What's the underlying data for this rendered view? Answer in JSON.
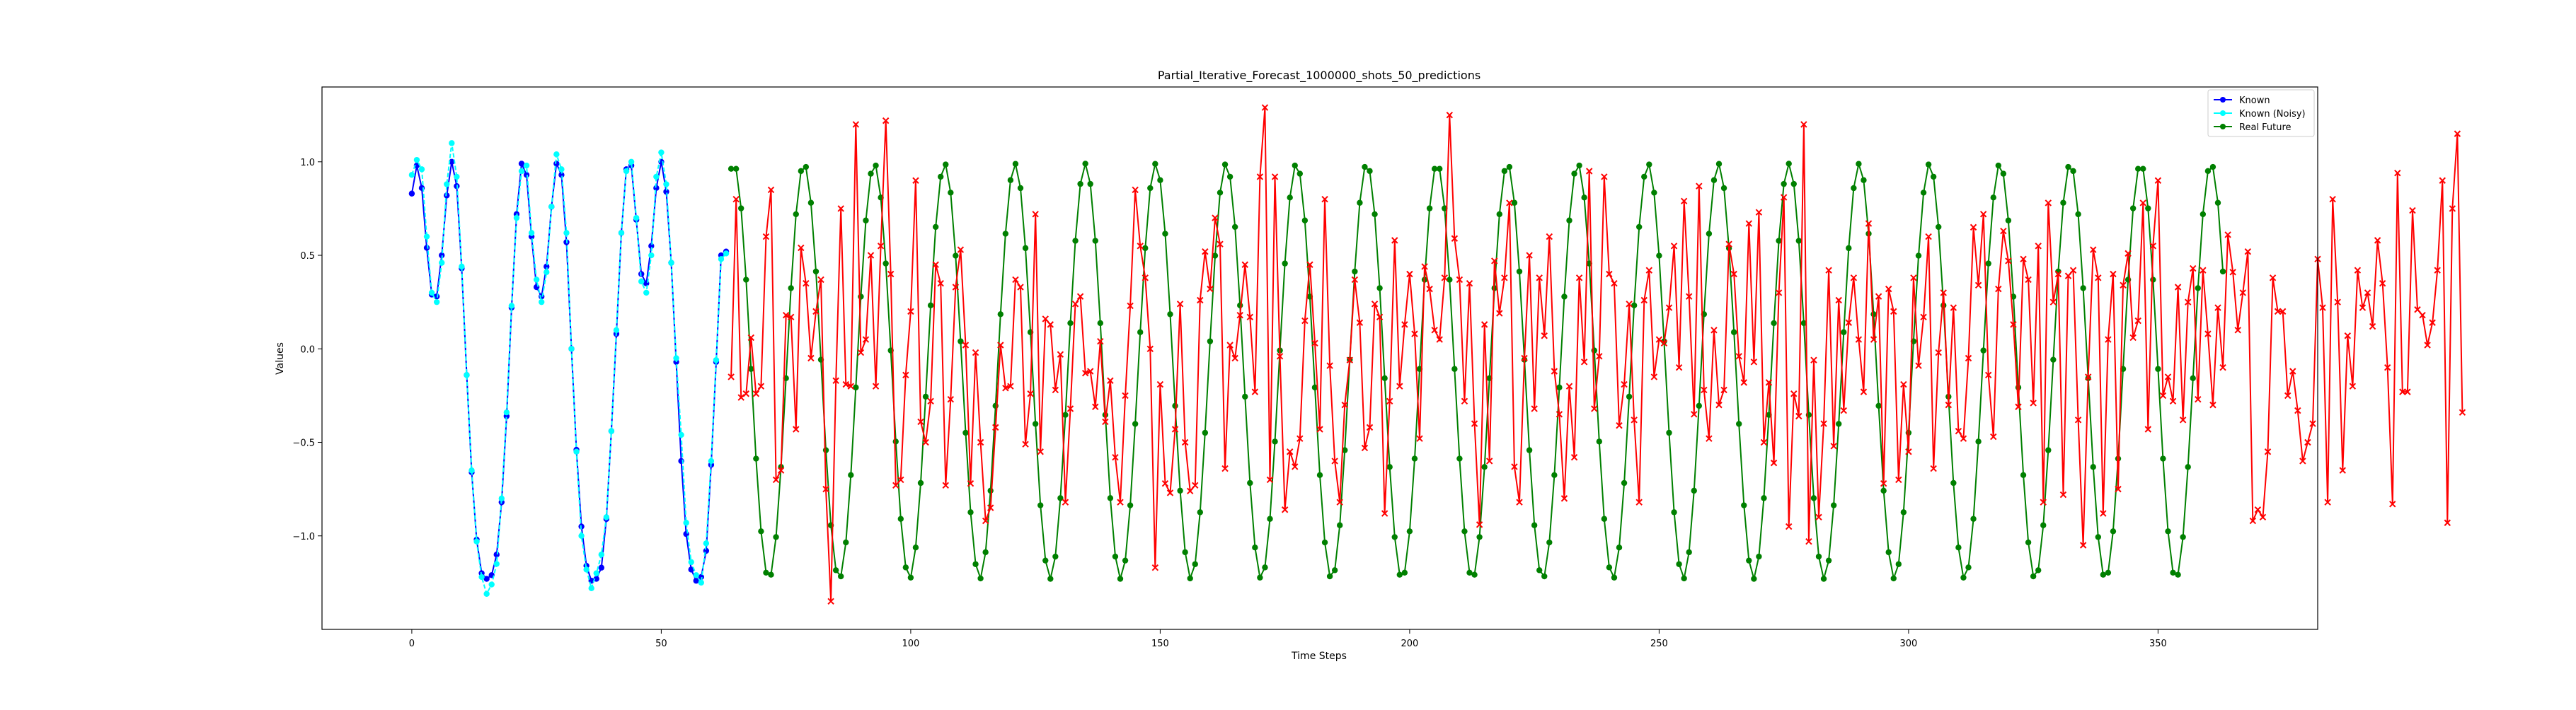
{
  "chart_data": {
    "type": "line",
    "title": "Partial_Iterative_Forecast_1000000_shots_50_predictions",
    "xlabel": "Time Steps",
    "ylabel": "Values",
    "xlim": [
      -18,
      382
    ],
    "ylim": [
      -1.5,
      1.4
    ],
    "xticks": [
      0,
      50,
      100,
      150,
      200,
      250,
      300,
      350
    ],
    "yticks": [
      -1.0,
      -0.5,
      0.0,
      0.5,
      1.0
    ],
    "xtick_labels": [
      "0",
      "50",
      "100",
      "150",
      "200",
      "250",
      "300",
      "350"
    ],
    "ytick_labels": [
      "−1.0",
      "−0.5",
      "0.0",
      "0.5",
      "1.0"
    ],
    "grid": false,
    "legend_position": "top-right",
    "legend": [
      {
        "label": "Known",
        "color": "#0000ff",
        "marker": "circle"
      },
      {
        "label": "Known (Noisy)",
        "color": "#00ffff",
        "marker": "circle"
      },
      {
        "label": "Real Future",
        "color": "#008000",
        "marker": "circle"
      }
    ],
    "series": [
      {
        "name": "Known",
        "color": "#0000ff",
        "style": "solid",
        "marker": "circle",
        "x_start": 0,
        "values": [
          0.83,
          0.98,
          0.86,
          0.54,
          0.29,
          0.28,
          0.5,
          0.82,
          1.0,
          0.87,
          0.43,
          -0.14,
          -0.66,
          -1.02,
          -1.2,
          -1.23,
          -1.21,
          -1.1,
          -0.82,
          -0.36,
          0.22,
          0.72,
          0.99,
          0.93,
          0.6,
          0.33,
          0.28,
          0.44,
          0.76,
          0.99,
          0.93,
          0.57,
          0.0,
          -0.54,
          -0.95,
          -1.16,
          -1.24,
          -1.23,
          -1.17,
          -0.91,
          -0.44,
          0.08,
          0.62,
          0.96,
          0.98,
          0.69,
          0.4,
          0.35,
          0.55,
          0.86,
          1.0,
          0.84,
          0.46,
          -0.07,
          -0.6,
          -0.99,
          -1.18,
          -1.24,
          -1.22,
          -1.08,
          -0.62,
          -0.07,
          0.5,
          0.52
        ]
      },
      {
        "name": "Known (Noisy)",
        "color": "#00ffff",
        "style": "dashed",
        "marker": "circle",
        "x_start": 0,
        "values": [
          0.93,
          1.01,
          0.96,
          0.6,
          0.3,
          0.25,
          0.46,
          0.88,
          1.1,
          0.92,
          0.44,
          -0.14,
          -0.65,
          -1.03,
          -1.22,
          -1.31,
          -1.26,
          -1.15,
          -0.8,
          -0.34,
          0.23,
          0.7,
          0.95,
          0.98,
          0.62,
          0.37,
          0.25,
          0.41,
          0.76,
          1.04,
          0.96,
          0.62,
          0.0,
          -0.55,
          -1.0,
          -1.18,
          -1.28,
          -1.2,
          -1.1,
          -0.9,
          -0.44,
          0.1,
          0.62,
          0.95,
          1.0,
          0.7,
          0.36,
          0.3,
          0.5,
          0.92,
          1.05,
          0.88,
          0.46,
          -0.05,
          -0.46,
          -0.93,
          -1.14,
          -1.21,
          -1.25,
          -1.04,
          -0.6,
          -0.06,
          0.48,
          0.51
        ]
      },
      {
        "name": "Real Future",
        "color": "#008000",
        "style": "solid",
        "marker": "circle",
        "x_start": 64,
        "period": 14.1,
        "phase": 64.5,
        "amplitude": 1.11,
        "offset": -0.12,
        "count": 300
      },
      {
        "name": "",
        "color": "#ff0000",
        "style": "solid",
        "marker": "x",
        "x_start": 64,
        "values": [
          -0.15,
          0.8,
          -0.26,
          -0.24,
          0.06,
          -0.24,
          -0.2,
          0.6,
          0.85,
          -0.7,
          -0.65,
          0.18,
          0.17,
          -0.43,
          0.54,
          0.35,
          -0.05,
          0.2,
          0.37,
          -0.75,
          -1.35,
          -0.17,
          0.75,
          -0.19,
          -0.2,
          1.2,
          -0.02,
          0.05,
          0.5,
          -0.2,
          0.55,
          1.22,
          0.4,
          -0.73,
          -0.7,
          -0.14,
          0.2,
          0.9,
          -0.39,
          -0.5,
          -0.28,
          0.45,
          0.35,
          -0.73,
          -0.27,
          0.33,
          0.53,
          0.02,
          -0.72,
          -0.02,
          -0.5,
          -0.92,
          -0.85,
          -0.42,
          0.02,
          -0.21,
          -0.2,
          0.37,
          0.33,
          -0.51,
          -0.24,
          0.72,
          -0.55,
          0.16,
          0.13,
          -0.22,
          -0.03,
          -0.82,
          -0.32,
          0.24,
          0.28,
          -0.13,
          -0.12,
          -0.31,
          0.04,
          -0.39,
          -0.17,
          -0.58,
          -0.82,
          -0.25,
          0.23,
          0.85,
          0.55,
          0.38,
          0.0,
          -1.17,
          -0.19,
          -0.72,
          -0.77,
          -0.43,
          0.24,
          -0.5,
          -0.76,
          -0.73,
          0.26,
          0.52,
          0.32,
          0.7,
          0.56,
          -0.64,
          0.02,
          -0.05,
          0.18,
          0.45,
          0.17,
          -0.23,
          0.92,
          1.29,
          -0.7,
          0.92,
          -0.04,
          -0.86,
          -0.55,
          -0.63,
          -0.48,
          0.15,
          0.45,
          0.03,
          -0.43,
          0.8,
          -0.09,
          -0.6,
          -0.82,
          -0.3,
          -0.06,
          0.37,
          0.14,
          -0.53,
          -0.42,
          0.24,
          0.17,
          -0.88,
          -0.28,
          0.58,
          -0.2,
          0.13,
          0.4,
          0.08,
          -0.48,
          0.44,
          0.32,
          0.1,
          0.05,
          0.38,
          1.25,
          0.59,
          0.37,
          -0.28,
          0.35,
          -0.4,
          -0.94,
          0.13,
          -0.6,
          0.47,
          0.19,
          0.38,
          0.78,
          -0.63,
          -0.82,
          -0.05,
          0.5,
          -0.32,
          0.38,
          0.07,
          0.6,
          -0.12,
          -0.35,
          -0.8,
          -0.2,
          -0.58,
          0.38,
          -0.07,
          0.95,
          -0.32,
          -0.04,
          0.92,
          0.4,
          0.35,
          -0.41,
          -0.19,
          0.24,
          -0.38,
          -0.82,
          0.26,
          0.42,
          -0.15,
          0.05,
          0.03,
          0.22,
          0.55,
          -0.1,
          0.79,
          0.28,
          -0.35,
          0.87,
          -0.22,
          -0.48,
          0.1,
          -0.3,
          -0.22,
          0.56,
          0.4,
          -0.04,
          -0.18,
          0.67,
          -0.07,
          0.73,
          -0.5,
          -0.18,
          -0.61,
          0.3,
          0.81,
          -0.95,
          -0.24,
          -0.36,
          1.2,
          -1.03,
          -0.06,
          -0.9,
          -0.4,
          0.42,
          -0.52,
          0.26,
          -0.33,
          0.14,
          0.38,
          0.05,
          -0.23,
          0.67,
          0.05,
          0.28,
          -0.72,
          0.32,
          0.2,
          -0.7,
          -0.19,
          -0.55,
          0.38,
          -0.09,
          0.17,
          0.6,
          -0.64,
          -0.02,
          0.3,
          -0.3,
          0.22,
          -0.44,
          -0.48,
          -0.05,
          0.65,
          0.34,
          0.72,
          -0.14,
          -0.47,
          0.32,
          0.63,
          0.47,
          0.13,
          -0.31,
          0.48,
          0.37,
          -0.29,
          0.55,
          -0.82,
          0.78,
          0.25,
          0.4,
          -0.78,
          0.39,
          0.42,
          -0.38,
          -1.05,
          -0.15,
          0.53,
          0.38,
          -0.88,
          0.05,
          0.4,
          -0.75,
          0.34,
          0.51,
          0.06,
          0.15,
          0.78,
          -0.43,
          0.55,
          0.9,
          -0.25,
          -0.15,
          -0.28,
          0.33,
          -0.38,
          0.25,
          0.43,
          -0.27,
          0.42,
          0.08,
          -0.3,
          0.22,
          -0.1,
          0.61,
          0.41,
          0.1,
          0.3,
          0.52,
          -0.92,
          -0.86,
          -0.9,
          -0.55,
          0.38,
          0.2,
          0.2,
          -0.25,
          -0.12,
          -0.33,
          -0.6,
          -0.5,
          -0.4,
          0.48,
          0.22,
          -0.82,
          0.8,
          0.25,
          -0.65,
          0.07,
          -0.2,
          0.42,
          0.22,
          0.3,
          0.12,
          0.58,
          0.35,
          -0.1,
          -0.83,
          0.94,
          -0.23,
          -0.23,
          0.74,
          0.21,
          0.18,
          0.02,
          0.14,
          0.42,
          0.9,
          -0.93,
          0.75,
          1.15,
          -0.34
        ]
      }
    ]
  }
}
